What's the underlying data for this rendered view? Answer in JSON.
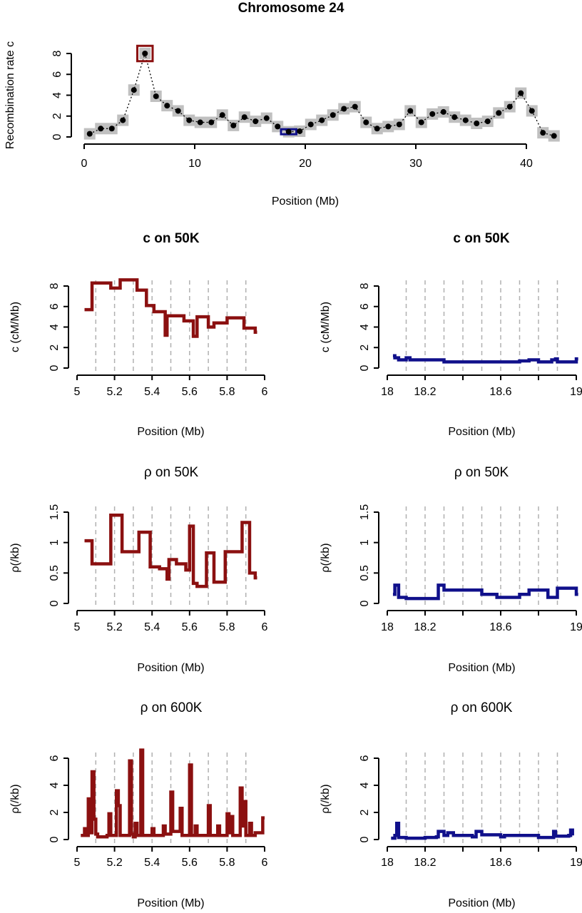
{
  "chart_data": [
    {
      "type": "line",
      "title": "Chromosome 24",
      "xlabel": "Position (Mb)",
      "ylabel": "Recombination rate c",
      "color": "#000000",
      "box_color": "#c0c0c0",
      "x": [
        0.5,
        1.5,
        2.5,
        3.5,
        4.5,
        5.5,
        6.5,
        7.5,
        8.5,
        9.5,
        10.5,
        11.5,
        12.5,
        13.5,
        14.5,
        15.5,
        16.5,
        17.5,
        18.5,
        19.5,
        20.5,
        21.5,
        22.5,
        23.5,
        24.5,
        25.5,
        26.5,
        27.5,
        28.5,
        29.5,
        30.5,
        31.5,
        32.5,
        33.5,
        34.5,
        35.5,
        36.5,
        37.5,
        38.5,
        39.5,
        40.5,
        41.5,
        42.5
      ],
      "values": [
        0.3,
        0.8,
        0.8,
        1.6,
        4.5,
        8.0,
        3.9,
        3.0,
        2.5,
        1.6,
        1.4,
        1.4,
        2.1,
        1.1,
        1.9,
        1.5,
        1.8,
        1.0,
        0.5,
        0.55,
        1.2,
        1.6,
        2.1,
        2.7,
        2.9,
        1.4,
        0.8,
        1.0,
        1.2,
        2.5,
        1.4,
        2.2,
        2.4,
        1.9,
        1.6,
        1.3,
        1.5,
        2.3,
        2.9,
        4.2,
        2.5,
        0.4,
        0.1
      ],
      "highlights": [
        {
          "x": [
            5,
            6
          ],
          "y": 8,
          "color": "#8b1010"
        },
        {
          "x": [
            18,
            19
          ],
          "y": 0.5,
          "color": "#10108b"
        }
      ],
      "xlim": [
        0,
        40
      ],
      "xticks": [
        0,
        10,
        20,
        30,
        40
      ],
      "ylim": [
        0,
        8
      ],
      "yticks": [
        0,
        2,
        4,
        6,
        8
      ]
    },
    {
      "type": "step",
      "title": "c on 50K",
      "xlabel": "Position (Mb)",
      "ylabel": "c (cM/Mb)",
      "color": "#8b1010",
      "x": [
        5.04,
        5.08,
        5.18,
        5.23,
        5.32,
        5.37,
        5.41,
        5.47,
        5.48,
        5.57,
        5.62,
        5.64,
        5.7,
        5.73,
        5.8,
        5.89,
        5.95,
        5.96
      ],
      "values": [
        5.7,
        8.3,
        7.8,
        8.6,
        7.6,
        6.1,
        5.5,
        3.2,
        5.1,
        4.6,
        3.1,
        5.0,
        4.0,
        4.4,
        4.9,
        3.9,
        3.5,
        3.5
      ],
      "xlim": [
        5,
        6
      ],
      "xticks": [
        5,
        5.2,
        5.4,
        5.6,
        5.8,
        6
      ],
      "xgrid": [
        5.1,
        5.2,
        5.3,
        5.4,
        5.5,
        5.6,
        5.7,
        5.8,
        5.9
      ],
      "ylim": [
        0,
        8
      ],
      "yticks": [
        0,
        2,
        4,
        6,
        8
      ]
    },
    {
      "type": "step",
      "title": "c on 50K",
      "xlabel": "Position (Mb)",
      "ylabel": "c (cM/Mb)",
      "color": "#10108b",
      "x": [
        18.03,
        18.04,
        18.06,
        18.08,
        18.1,
        18.12,
        18.3,
        18.5,
        18.7,
        18.75,
        18.8,
        18.87,
        18.89,
        18.9,
        19.0,
        19.01
      ],
      "values": [
        1.2,
        1.0,
        0.8,
        0.8,
        1.0,
        0.8,
        0.6,
        0.6,
        0.7,
        0.8,
        0.6,
        0.8,
        0.9,
        0.6,
        0.9,
        0.9
      ],
      "xlim": [
        18,
        19
      ],
      "xticks": [
        18,
        18.2,
        {
          "value": 18.4,
          "label": null
        },
        18.6,
        {
          "value": 18.8,
          "label": null
        },
        19
      ],
      "xgrid": [
        18.1,
        18.2,
        18.3,
        18.4,
        18.5,
        18.6,
        18.7,
        18.8,
        18.9
      ],
      "ylim": [
        0,
        8
      ],
      "yticks": [
        0,
        2,
        4,
        6,
        8
      ]
    },
    {
      "type": "step",
      "title": "ρ on 50K",
      "xlabel": "Position (Mb)",
      "ylabel": "ρ(/kb)",
      "color": "#8b1010",
      "x": [
        5.04,
        5.08,
        5.18,
        5.24,
        5.33,
        5.39,
        5.44,
        5.48,
        5.49,
        5.53,
        5.58,
        5.6,
        5.62,
        5.64,
        5.69,
        5.73,
        5.79,
        5.88,
        5.92,
        5.95,
        5.96
      ],
      "values": [
        1.03,
        0.65,
        1.45,
        0.85,
        1.17,
        0.6,
        0.57,
        0.4,
        0.72,
        0.65,
        0.55,
        1.27,
        0.33,
        0.28,
        0.83,
        0.35,
        0.85,
        1.33,
        0.5,
        0.42,
        0.42
      ],
      "xlim": [
        5,
        6
      ],
      "xticks": [
        5,
        5.2,
        5.4,
        5.6,
        5.8,
        6
      ],
      "xgrid": [
        5.1,
        5.2,
        5.3,
        5.4,
        5.5,
        5.6,
        5.7,
        5.8,
        5.9
      ],
      "ylim": [
        0,
        1.5
      ],
      "yticks": [
        0,
        0.5,
        1,
        1.5
      ]
    },
    {
      "type": "step",
      "title": "ρ on 50K",
      "xlabel": "Position (Mb)",
      "ylabel": "ρ(/kb)",
      "color": "#10108b",
      "x": [
        18.03,
        18.04,
        18.06,
        18.1,
        18.27,
        18.3,
        18.5,
        18.58,
        18.7,
        18.75,
        18.85,
        18.9,
        19.0,
        19.01
      ],
      "values": [
        0.15,
        0.3,
        0.1,
        0.08,
        0.3,
        0.22,
        0.15,
        0.1,
        0.15,
        0.22,
        0.1,
        0.25,
        0.15,
        0.15
      ],
      "xlim": [
        18,
        19
      ],
      "xticks": [
        18,
        18.2,
        {
          "value": 18.4,
          "label": null
        },
        18.6,
        {
          "value": 18.8,
          "label": null
        },
        19
      ],
      "xgrid": [
        18.1,
        18.2,
        18.3,
        18.4,
        18.5,
        18.6,
        18.7,
        18.8,
        18.9
      ],
      "ylim": [
        0,
        1.5
      ],
      "yticks": [
        0,
        0.5,
        1,
        1.5
      ]
    },
    {
      "type": "step",
      "title": "ρ on 600K",
      "xlabel": "Position (Mb)",
      "ylabel": "ρ(/kb)",
      "color": "#8b1010",
      "x": [
        5.02,
        5.04,
        5.05,
        5.06,
        5.07,
        5.08,
        5.09,
        5.1,
        5.11,
        5.16,
        5.17,
        5.18,
        5.21,
        5.22,
        5.23,
        5.28,
        5.29,
        5.3,
        5.31,
        5.32,
        5.34,
        5.35,
        5.4,
        5.41,
        5.46,
        5.47,
        5.5,
        5.51,
        5.55,
        5.56,
        5.6,
        5.61,
        5.63,
        5.64,
        5.7,
        5.71,
        5.75,
        5.76,
        5.8,
        5.81,
        5.82,
        5.83,
        5.87,
        5.88,
        5.89,
        5.9,
        5.92,
        5.93,
        5.95,
        5.99,
        6.0
      ],
      "values": [
        0.3,
        0.8,
        0.3,
        3.0,
        0.5,
        5.0,
        1.5,
        0.4,
        0.2,
        0.3,
        1.9,
        0.3,
        3.6,
        2.5,
        0.3,
        5.8,
        0.4,
        0.2,
        1.2,
        0.3,
        6.6,
        0.3,
        0.8,
        0.3,
        1.0,
        0.4,
        3.5,
        0.6,
        2.3,
        0.3,
        5.5,
        0.3,
        1.0,
        0.3,
        2.5,
        0.3,
        1.0,
        0.3,
        1.9,
        0.5,
        1.7,
        0.3,
        3.8,
        1.0,
        2.8,
        0.3,
        1.2,
        0.3,
        0.5,
        1.6,
        1.6
      ],
      "xlim": [
        5,
        6
      ],
      "xticks": [
        5,
        5.2,
        5.4,
        5.6,
        5.8,
        6
      ],
      "xgrid": [
        5.1,
        5.2,
        5.3,
        5.4,
        5.5,
        5.6,
        5.7,
        5.8,
        5.9
      ],
      "ylim": [
        0,
        6
      ],
      "yticks": [
        0,
        2,
        4,
        6
      ]
    },
    {
      "type": "step",
      "title": "ρ on 600K",
      "xlabel": "Position (Mb)",
      "ylabel": "ρ(/kb)",
      "color": "#10108b",
      "x": [
        18.02,
        18.04,
        18.05,
        18.06,
        18.1,
        18.2,
        18.26,
        18.27,
        18.3,
        18.32,
        18.35,
        18.45,
        18.47,
        18.5,
        18.6,
        18.62,
        18.8,
        18.88,
        18.89,
        18.96,
        18.97,
        18.98
      ],
      "values": [
        0.1,
        0.3,
        1.2,
        0.15,
        0.1,
        0.15,
        0.2,
        0.6,
        0.3,
        0.5,
        0.3,
        0.2,
        0.6,
        0.35,
        0.2,
        0.3,
        0.15,
        0.6,
        0.25,
        0.3,
        0.7,
        0.3
      ],
      "xlim": [
        18,
        19
      ],
      "xticks": [
        18,
        18.2,
        {
          "value": 18.4,
          "label": null
        },
        18.6,
        {
          "value": 18.8,
          "label": null
        },
        19
      ],
      "xgrid": [
        18.1,
        18.2,
        18.3,
        18.4,
        18.5,
        18.6,
        18.7,
        18.8,
        18.9
      ],
      "ylim": [
        0,
        6
      ],
      "yticks": [
        0,
        2,
        4,
        6
      ]
    }
  ]
}
